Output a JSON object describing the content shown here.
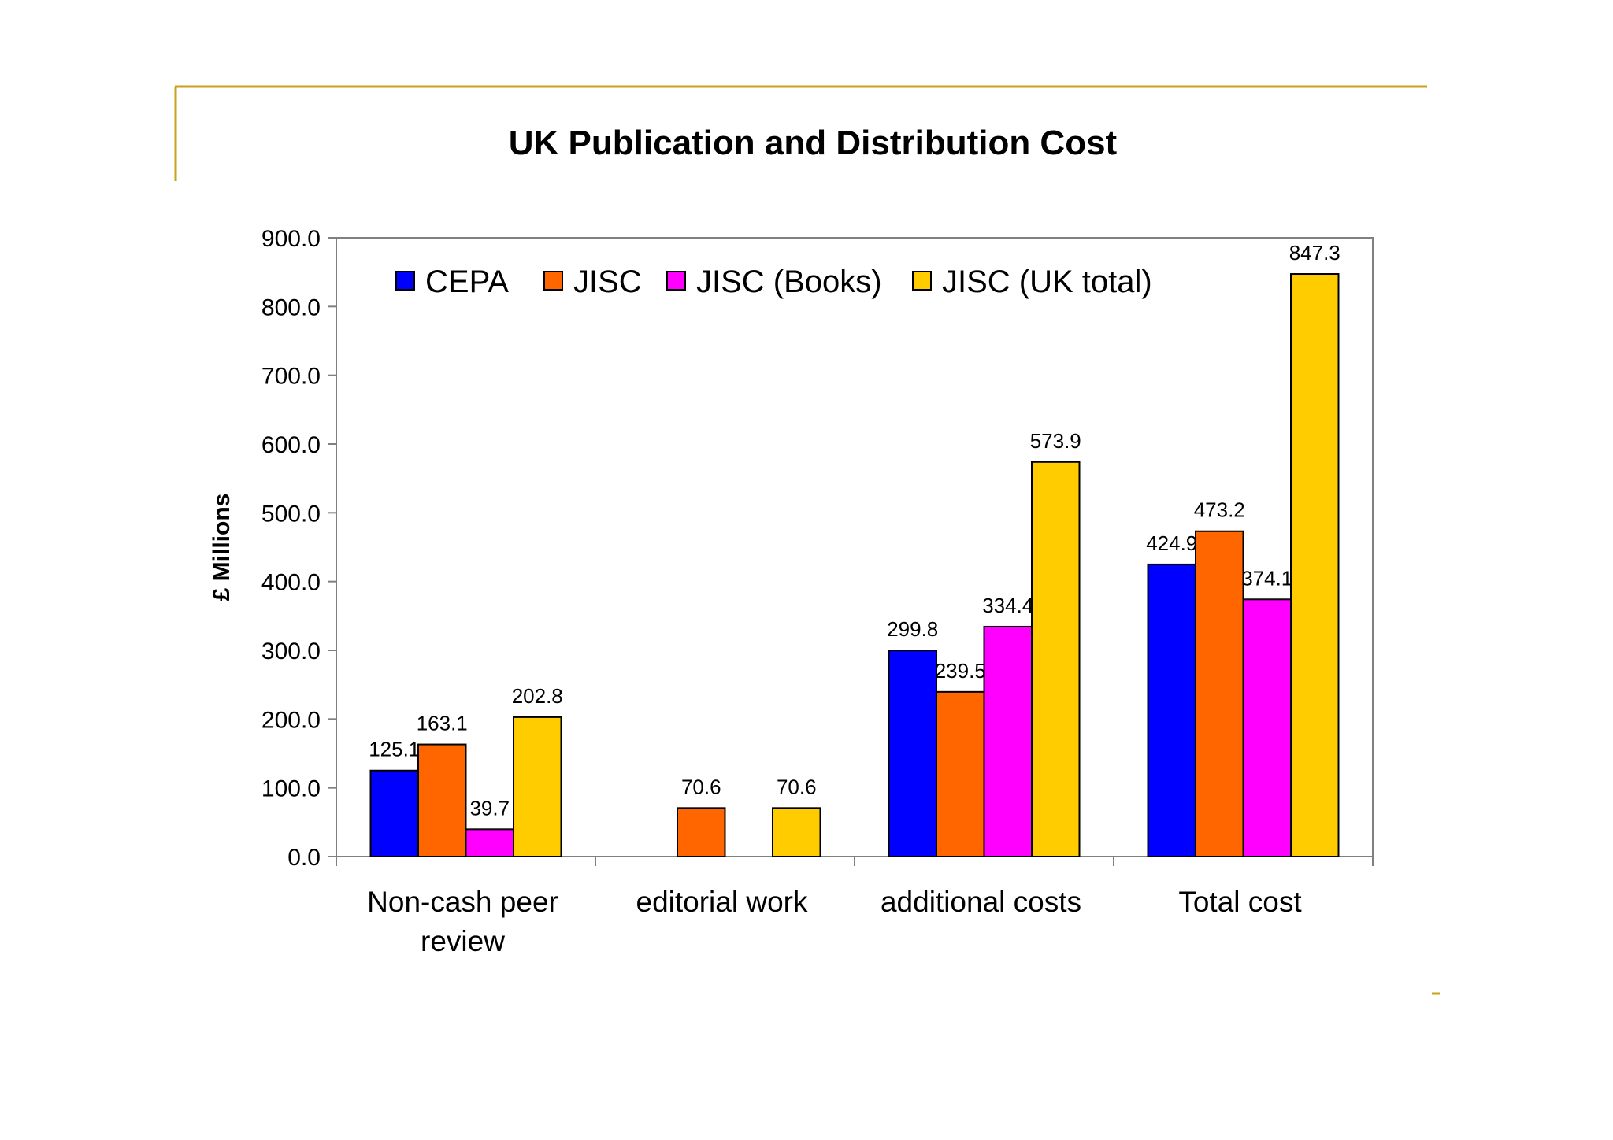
{
  "chart_data": {
    "type": "bar",
    "title": "UK Publication and Distribution Cost",
    "xlabel": "",
    "ylabel": "£ Millions",
    "ylim": [
      0,
      900
    ],
    "yticks": [
      "0.0",
      "100.0",
      "200.0",
      "300.0",
      "400.0",
      "500.0",
      "600.0",
      "700.0",
      "800.0",
      "900.0"
    ],
    "grid": false,
    "legend_position": "top",
    "categories": [
      [
        "Non-cash peer",
        "review"
      ],
      [
        "editorial work"
      ],
      [
        "additional costs"
      ],
      [
        "Total cost"
      ]
    ],
    "series": [
      {
        "name": "CEPA",
        "color": "#0000ff",
        "values": [
          125.1,
          null,
          299.8,
          424.9
        ],
        "labels": [
          "125.1",
          "",
          "299.8",
          "424.9"
        ]
      },
      {
        "name": "JISC",
        "color": "#ff6600",
        "values": [
          163.1,
          70.6,
          239.5,
          473.2
        ],
        "labels": [
          "163.1",
          "70.6",
          "239.5",
          "473.2"
        ]
      },
      {
        "name": "JISC (Books)",
        "color": "#ff00ff",
        "values": [
          39.7,
          null,
          334.4,
          374.1
        ],
        "labels": [
          "39.7",
          "",
          "334.4",
          "374.1"
        ]
      },
      {
        "name": "JISC (UK total)",
        "color": "#ffcc00",
        "values": [
          202.8,
          70.6,
          573.9,
          847.3
        ],
        "labels": [
          "202.8",
          "70.6",
          "573.9",
          "847.3"
        ]
      }
    ]
  },
  "frame": {
    "accent_color": "#c9a21b"
  }
}
